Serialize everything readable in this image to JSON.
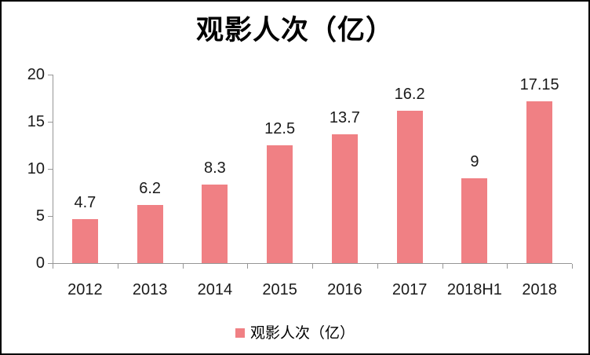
{
  "page": {
    "background_color": "#FFFFFF",
    "frame_color": "#000000"
  },
  "header": {
    "title": "观影人次（亿）"
  },
  "legend": {
    "label": "观影人次（亿）"
  },
  "chart_data": {
    "type": "bar",
    "title": "观影人次（亿）",
    "categories": [
      "2012",
      "2013",
      "2014",
      "2015",
      "2016",
      "2017",
      "2018H1",
      "2018"
    ],
    "values": [
      4.7,
      6.2,
      8.3,
      12.5,
      13.7,
      16.2,
      9,
      17.15
    ],
    "value_labels": [
      "4.7",
      "6.2",
      "8.3",
      "12.5",
      "13.7",
      "16.2",
      "9",
      "17.15"
    ],
    "xlabel": "",
    "ylabel": "",
    "ylim": [
      0,
      20
    ],
    "yticks": [
      0,
      5,
      10,
      15,
      20
    ],
    "grid": false,
    "legend_position": "bottom",
    "legend_entries": [
      "观影人次（亿）"
    ],
    "bar_color": "#F08084",
    "axis_color": "#969696",
    "label_color": "#1A1A1A"
  }
}
